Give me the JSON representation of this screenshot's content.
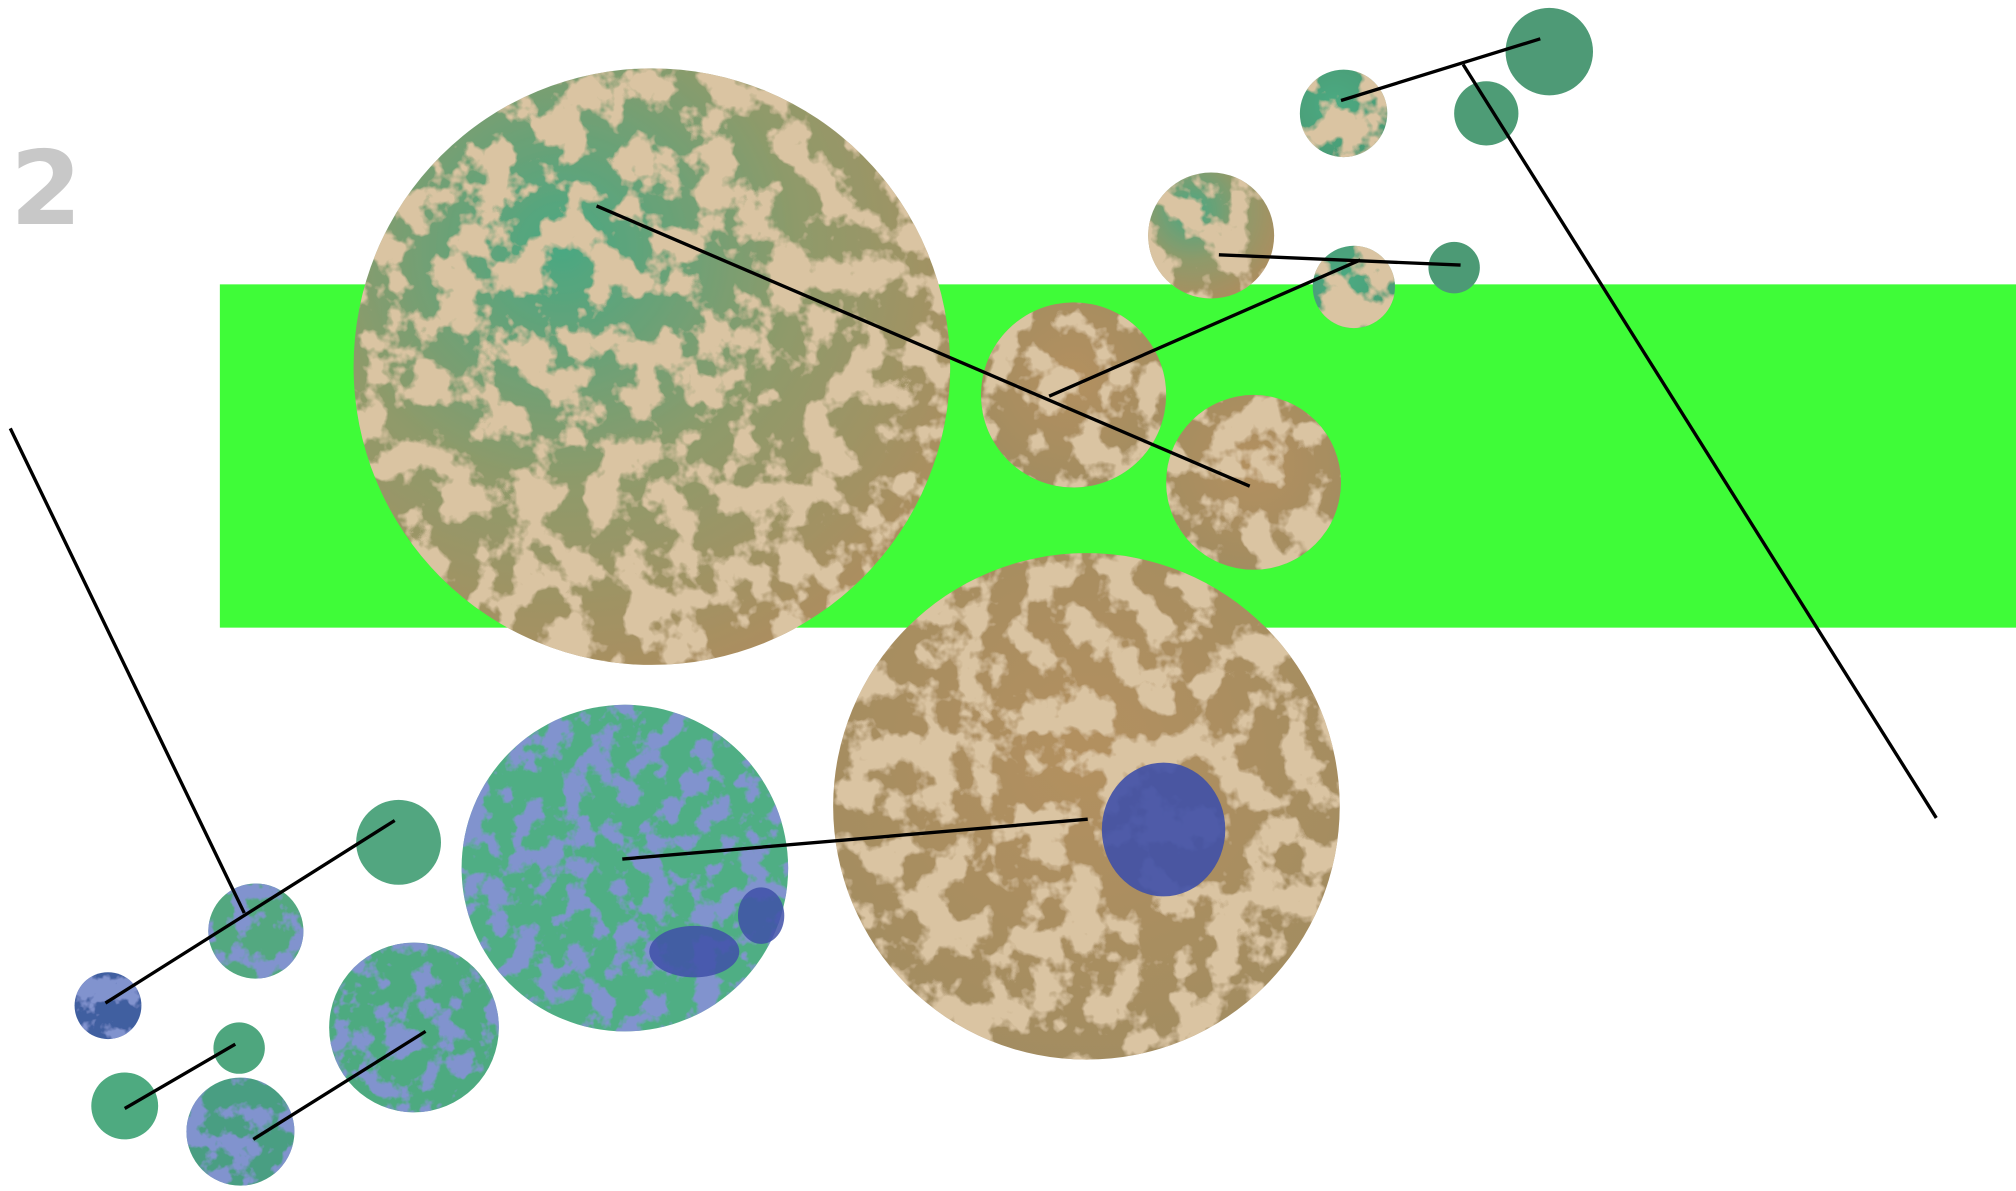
{
  "label": "2"
}
